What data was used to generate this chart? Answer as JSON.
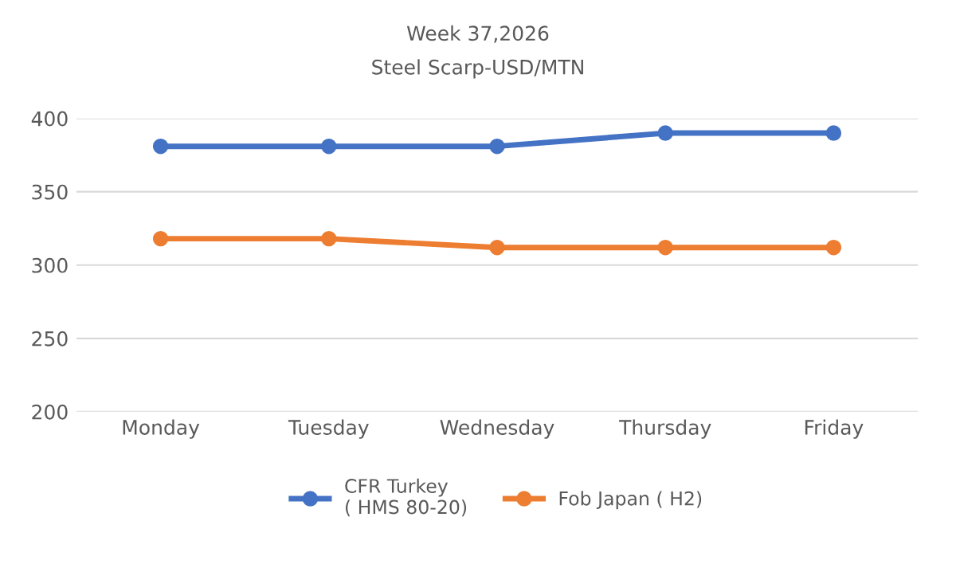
{
  "chart_data": {
    "type": "line",
    "title": "Week 37,2026",
    "subtitle": "Steel Scarp-USD/MTN",
    "categories": [
      "Monday",
      "Tuesday",
      "Wednesday",
      "Thursday",
      "Friday"
    ],
    "series": [
      {
        "name": "CFR Turkey\n( HMS 80-20)",
        "color": "#4472c4",
        "values": [
          381,
          381,
          381,
          390,
          390
        ]
      },
      {
        "name": "Fob Japan ( H2)",
        "color": "#ed7d31",
        "values": [
          318,
          318,
          312,
          312,
          312
        ]
      }
    ],
    "ylim": [
      200,
      400
    ],
    "yticks": [
      200,
      250,
      300,
      350,
      400
    ],
    "grid": "y",
    "legend": "bottom",
    "marker": "circle",
    "line_style": "solid"
  }
}
